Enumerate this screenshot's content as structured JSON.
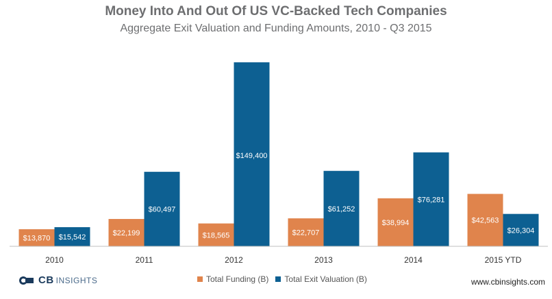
{
  "title": "Money Into And Out Of US VC-Backed Tech Companies",
  "subtitle": "Aggregate Exit Valuation and Funding Amounts, 2010 - Q3 2015",
  "logo": {
    "brand": "CB",
    "suffix": "INSIGHTS"
  },
  "url": "www.cbinsights.com",
  "colors": {
    "funding": "#e0844c",
    "exit": "#0d6092",
    "axis": "#bfbfbf"
  },
  "chart_data": {
    "type": "bar",
    "categories": [
      "2010",
      "2011",
      "2012",
      "2013",
      "2014",
      "2015 YTD"
    ],
    "series": [
      {
        "name": "Total Funding (B)",
        "values": [
          13870,
          22199,
          18565,
          22707,
          38994,
          42563
        ],
        "labels": [
          "$13,870",
          "$22,199",
          "$18,565",
          "$22,707",
          "$38,994",
          "$42,563"
        ]
      },
      {
        "name": "Total Exit Valuation (B)",
        "values": [
          15542,
          60497,
          149400,
          61252,
          76281,
          26304
        ],
        "labels": [
          "$15,542",
          "$60,497",
          "$149,400",
          "$61,252",
          "$76,281",
          "$26,304"
        ]
      }
    ],
    "ylim": [
      0,
      160000
    ],
    "legend": "bottom",
    "grid": false
  }
}
